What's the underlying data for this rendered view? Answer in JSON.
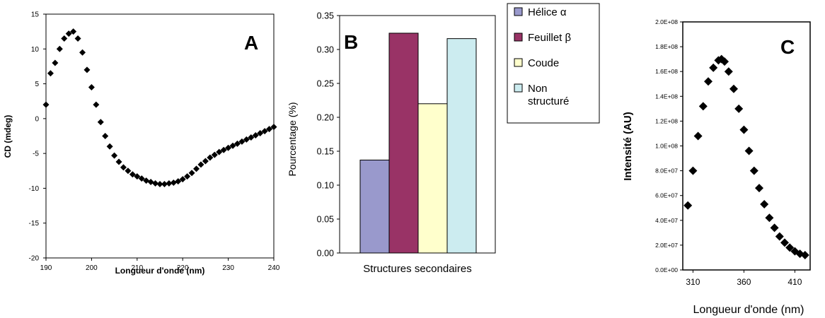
{
  "chart_data": [
    {
      "panel": "A",
      "type": "scatter",
      "marker": "diamond",
      "color": "#000000",
      "xlabel": "Longueur d'onde (nm)",
      "ylabel": "CD (mdeg)",
      "xlim": [
        190,
        240
      ],
      "ylim": [
        -20,
        15
      ],
      "xticks": [
        190,
        200,
        210,
        220,
        230,
        240
      ],
      "yticks": [
        15,
        10,
        5,
        0,
        -5,
        -10,
        -15,
        -20
      ],
      "x": [
        190,
        191,
        192,
        193,
        194,
        195,
        196,
        197,
        198,
        199,
        200,
        201,
        202,
        203,
        204,
        205,
        206,
        207,
        208,
        209,
        210,
        211,
        212,
        213,
        214,
        215,
        216,
        217,
        218,
        219,
        220,
        221,
        222,
        223,
        224,
        225,
        226,
        227,
        228,
        229,
        230,
        231,
        232,
        233,
        234,
        235,
        236,
        237,
        238,
        239,
        240
      ],
      "y": [
        2,
        6.5,
        8,
        10,
        11.5,
        12.2,
        12.5,
        11.5,
        9.5,
        7,
        4.5,
        2,
        -0.5,
        -2.5,
        -4,
        -5.3,
        -6.2,
        -7,
        -7.5,
        -8,
        -8.3,
        -8.6,
        -8.9,
        -9.1,
        -9.3,
        -9.4,
        -9.4,
        -9.3,
        -9.2,
        -9,
        -8.7,
        -8.3,
        -7.8,
        -7.2,
        -6.6,
        -6.1,
        -5.6,
        -5.2,
        -4.8,
        -4.5,
        -4.2,
        -3.9,
        -3.6,
        -3.3,
        -3,
        -2.7,
        -2.4,
        -2.1,
        -1.8,
        -1.5,
        -1.2
      ]
    },
    {
      "panel": "B",
      "type": "bar",
      "xlabel": "Structures secondaires",
      "ylabel": "Pourcentage (%)",
      "ylim": [
        0,
        0.35
      ],
      "yticks": [
        "0.00",
        "0.05",
        "0.10",
        "0.15",
        "0.20",
        "0.25",
        "0.30",
        "0.35"
      ],
      "legend_position": "right",
      "series": [
        {
          "name": "Hélice α",
          "legend_lines": [
            "Hélice α"
          ],
          "value": 0.137,
          "color": "#9999cc"
        },
        {
          "name": "Feuillet β",
          "legend_lines": [
            "Feuillet β"
          ],
          "value": 0.324,
          "color": "#993366"
        },
        {
          "name": "Coude",
          "legend_lines": [
            "Coude"
          ],
          "value": 0.22,
          "color": "#ffffcc"
        },
        {
          "name": "Non structuré",
          "legend_lines": [
            "Non",
            "structuré"
          ],
          "value": 0.316,
          "color": "#ccecf0"
        }
      ]
    },
    {
      "panel": "C",
      "type": "scatter",
      "marker": "diamond",
      "color": "#000000",
      "xlabel": "Longueur d'onde (nm)",
      "ylabel": "Intensité (AU)",
      "xlim": [
        300,
        425
      ],
      "ylim": [
        0,
        200000000
      ],
      "xticks": [
        310,
        360,
        410
      ],
      "yticks": [
        "2.0E+08",
        "1.8E+08",
        "1.6E+08",
        "1.4E+08",
        "1.2E+08",
        "1.0E+08",
        "8.0E+07",
        "6.0E+07",
        "4.0E+07",
        "2.0E+07",
        "0.0E+00"
      ],
      "x": [
        305,
        310,
        315,
        320,
        325,
        330,
        335,
        338,
        341,
        345,
        350,
        355,
        360,
        365,
        370,
        375,
        380,
        385,
        390,
        395,
        400,
        405,
        410,
        415,
        420
      ],
      "y": [
        52000000,
        80000000,
        108000000,
        132000000,
        152000000,
        163000000,
        169000000,
        170000000,
        168000000,
        160000000,
        146000000,
        130000000,
        113000000,
        96000000,
        80000000,
        66000000,
        53000000,
        42000000,
        34000000,
        27000000,
        22000000,
        18000000,
        15000000,
        13000000,
        12000000
      ]
    }
  ]
}
